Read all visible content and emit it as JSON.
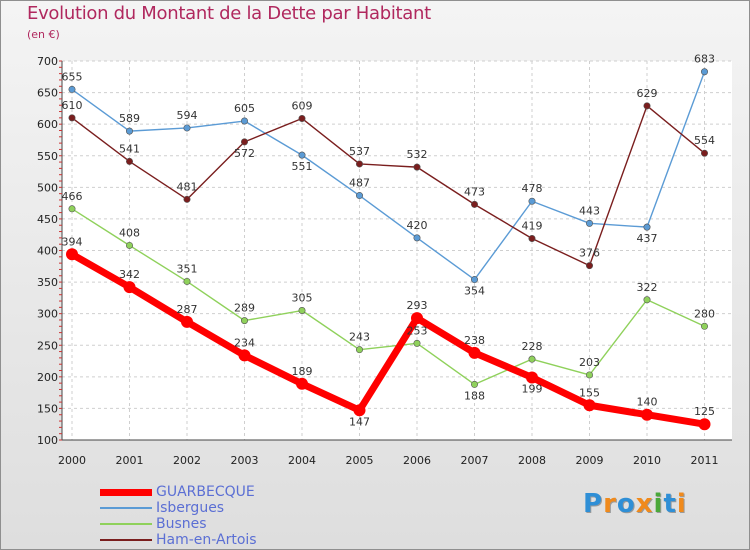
{
  "title": "Evolution du Montant de la Dette par Habitant",
  "unit": "(en €)",
  "chart_data": {
    "type": "line",
    "title": "Evolution du Montant de la Dette par Habitant",
    "subtitle": "(en €)",
    "ylim": [
      100,
      700
    ],
    "yticks": [
      100,
      150,
      200,
      250,
      300,
      350,
      400,
      450,
      500,
      550,
      600,
      650,
      700
    ],
    "categories": [
      "2000",
      "2001",
      "2002",
      "2003",
      "2004",
      "2005",
      "2006",
      "2007",
      "2008",
      "2009",
      "2010",
      "2011"
    ],
    "grid": true,
    "legend": "bottom-left",
    "series": [
      {
        "name": "Isbergues",
        "color": "#5b9bd5",
        "values": [
          655,
          589,
          594,
          605,
          551,
          487,
          420,
          354,
          478,
          443,
          437,
          683
        ]
      },
      {
        "name": "Busnes",
        "color": "#8fd15b",
        "values": [
          466,
          408,
          351,
          289,
          305,
          243,
          253,
          188,
          228,
          203,
          322,
          280
        ]
      },
      {
        "name": "Ham-en-Artois",
        "color": "#7a1e1e",
        "values": [
          610,
          541,
          481,
          572,
          609,
          537,
          532,
          473,
          419,
          376,
          629,
          554
        ]
      },
      {
        "name": "GUARBECQUE",
        "color": "#ff0000",
        "values": [
          394,
          342,
          287,
          234,
          189,
          147,
          293,
          238,
          199,
          155,
          140,
          125
        ]
      }
    ],
    "legend_order": [
      "GUARBECQUE",
      "Isbergues",
      "Busnes",
      "Ham-en-Artois"
    ]
  },
  "logo": {
    "letters": [
      "P",
      "r",
      "o",
      "x",
      "i",
      "t",
      "i"
    ],
    "colors": [
      "#2f8fd6",
      "#f08a1c",
      "#2f8fd6",
      "#f08a1c",
      "#4aa83a",
      "#2f8fd6",
      "#f08a1c"
    ]
  }
}
